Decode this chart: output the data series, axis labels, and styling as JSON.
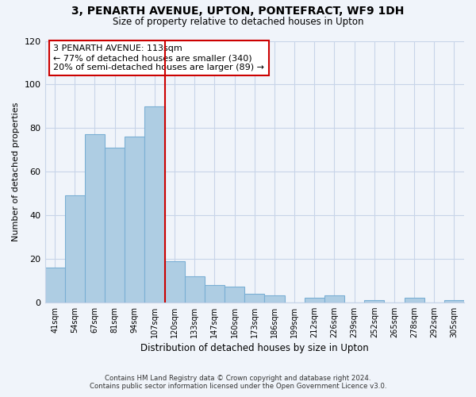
{
  "title": "3, PENARTH AVENUE, UPTON, PONTEFRACT, WF9 1DH",
  "subtitle": "Size of property relative to detached houses in Upton",
  "xlabel": "Distribution of detached houses by size in Upton",
  "ylabel": "Number of detached properties",
  "bar_labels": [
    "41sqm",
    "54sqm",
    "67sqm",
    "81sqm",
    "94sqm",
    "107sqm",
    "120sqm",
    "133sqm",
    "147sqm",
    "160sqm",
    "173sqm",
    "186sqm",
    "199sqm",
    "212sqm",
    "226sqm",
    "239sqm",
    "252sqm",
    "265sqm",
    "278sqm",
    "292sqm",
    "305sqm"
  ],
  "bar_values": [
    16,
    49,
    77,
    71,
    76,
    90,
    19,
    12,
    8,
    7,
    4,
    3,
    0,
    2,
    3,
    0,
    1,
    0,
    2,
    0,
    1
  ],
  "bar_color": "#aecde3",
  "bar_edge_color": "#7aafd4",
  "vline_color": "#cc0000",
  "annotation_title": "3 PENARTH AVENUE: 113sqm",
  "annotation_line1": "← 77% of detached houses are smaller (340)",
  "annotation_line2": "20% of semi-detached houses are larger (89) →",
  "annotation_box_color": "#ffffff",
  "annotation_box_edge": "#cc0000",
  "ylim": [
    0,
    120
  ],
  "yticks": [
    0,
    20,
    40,
    60,
    80,
    100,
    120
  ],
  "footer1": "Contains HM Land Registry data © Crown copyright and database right 2024.",
  "footer2": "Contains public sector information licensed under the Open Government Licence v3.0.",
  "bg_color": "#f0f4fa",
  "grid_color": "#c8d4e8"
}
